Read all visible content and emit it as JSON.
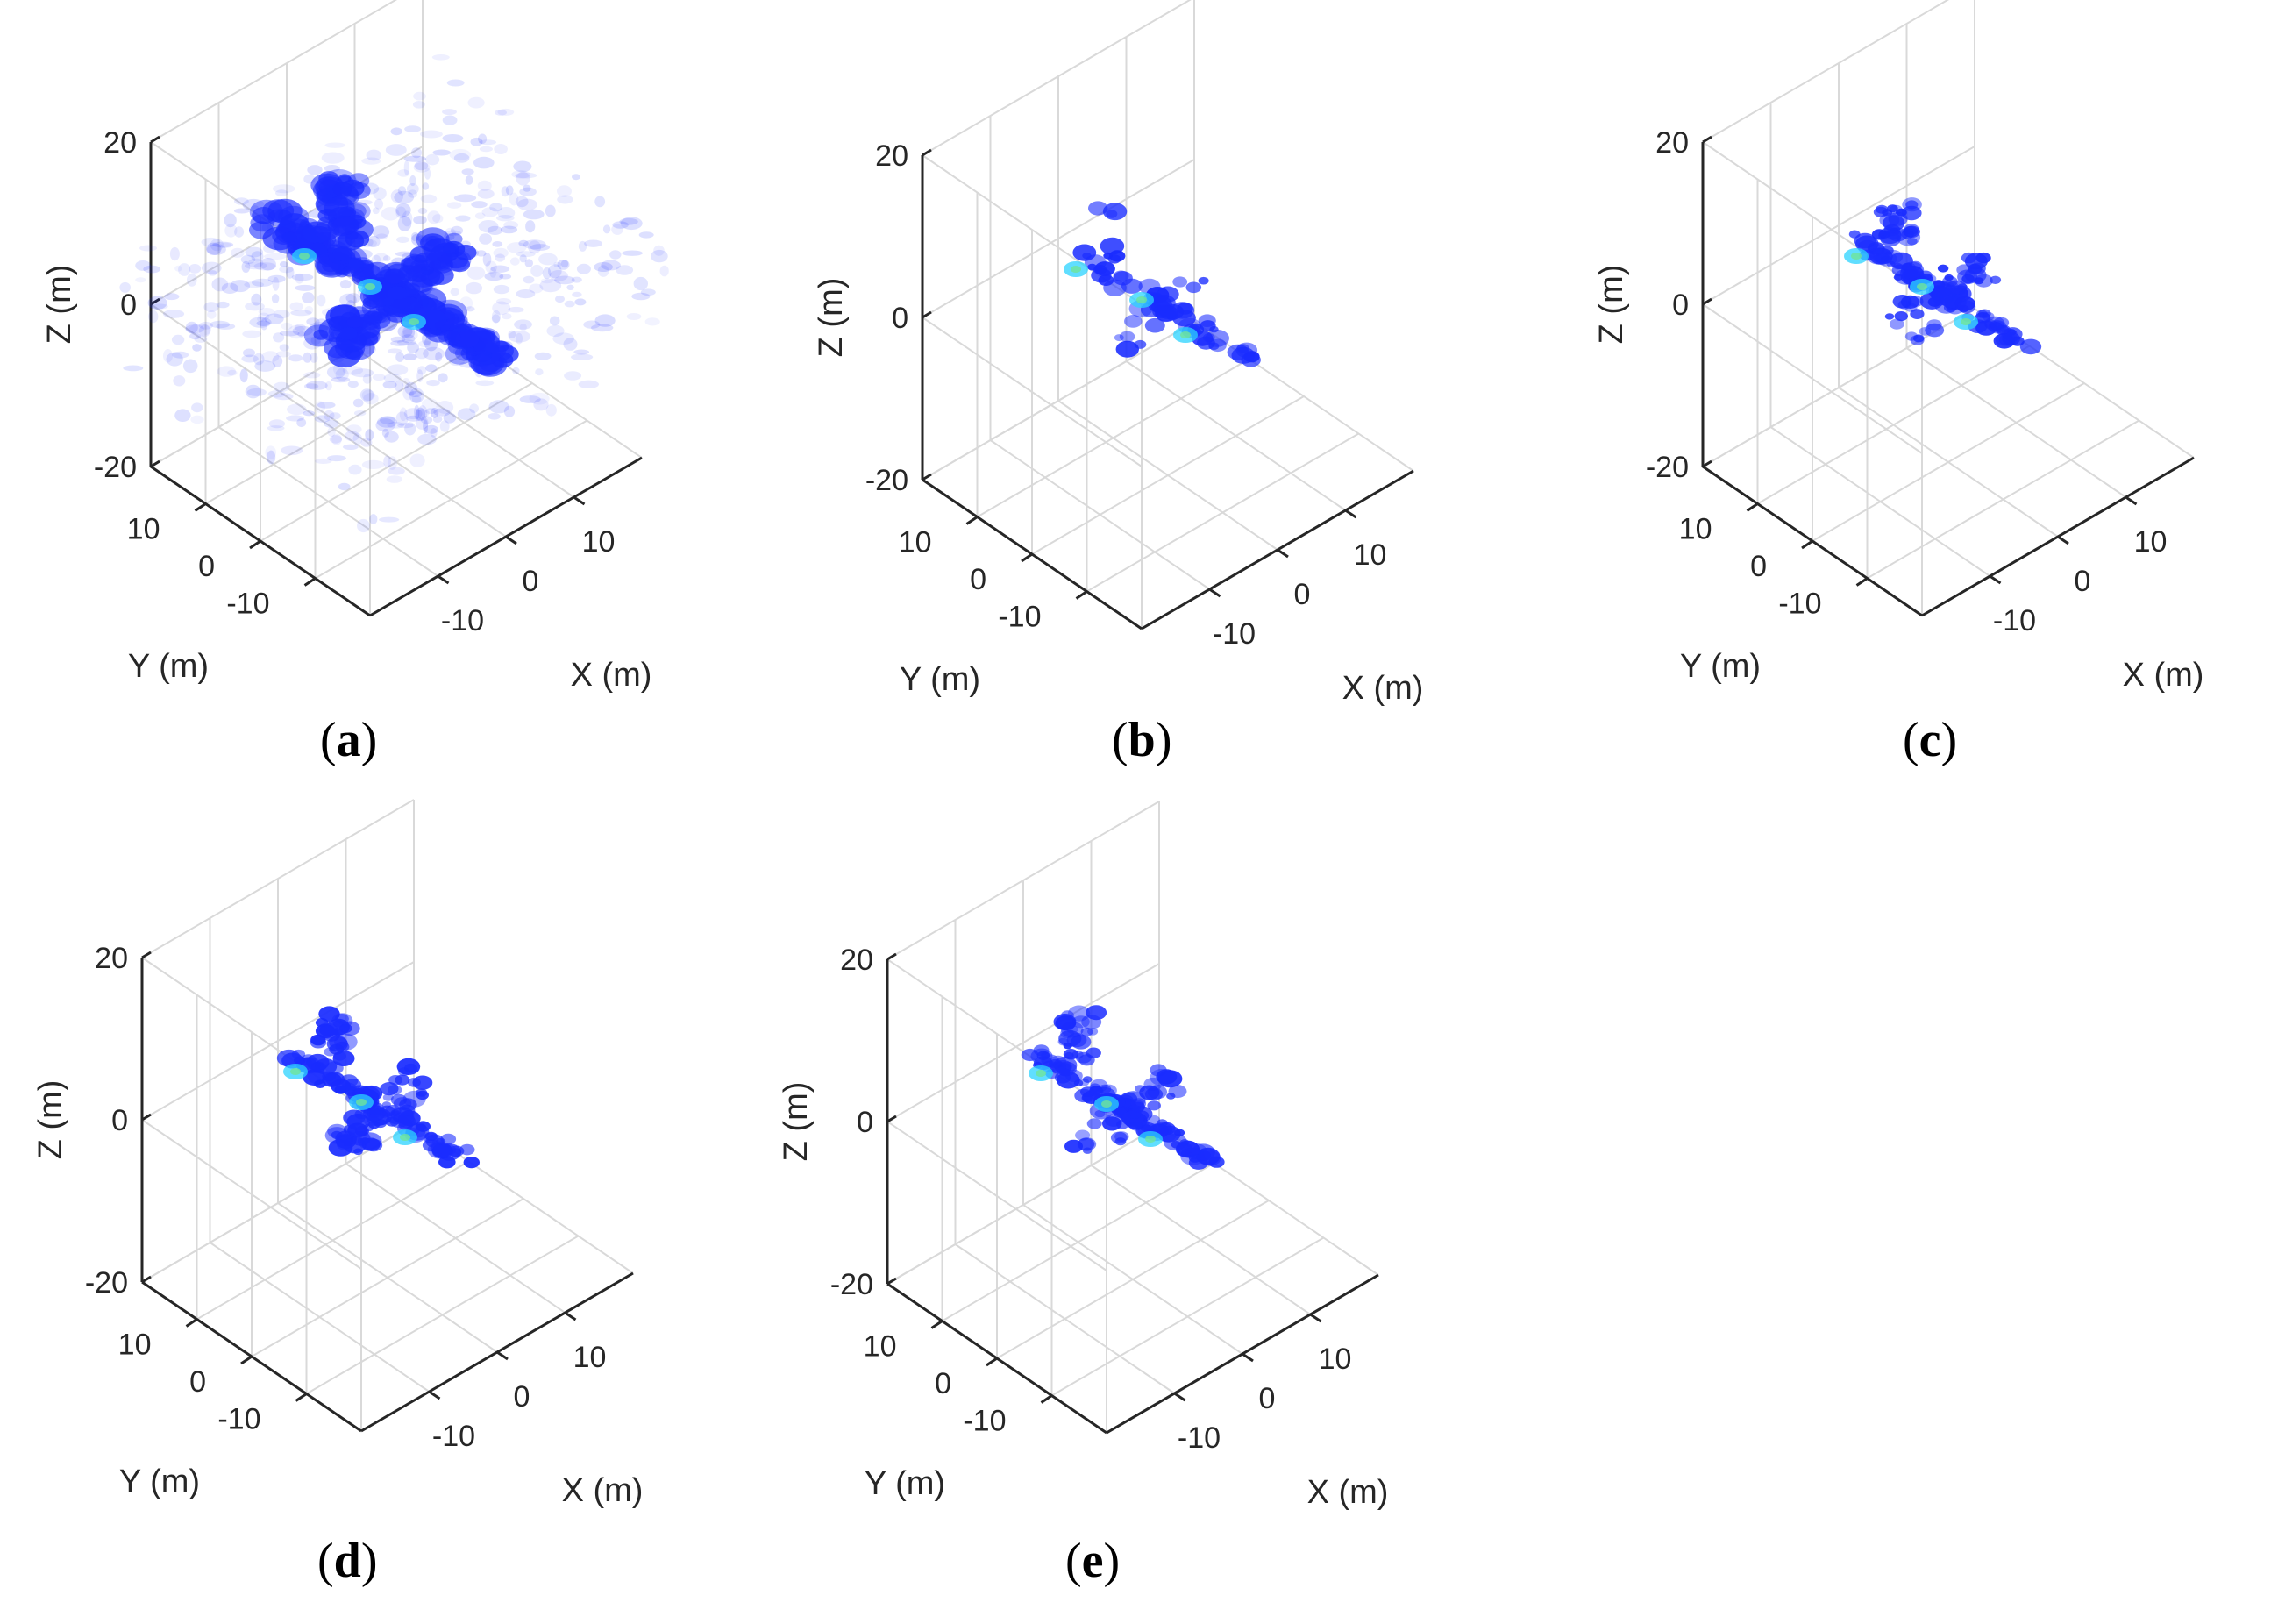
{
  "figure": {
    "panels": [
      {
        "id": "a",
        "caption_letter": "a",
        "variant": "noisy"
      },
      {
        "id": "b",
        "caption_letter": "b",
        "variant": "sparse"
      },
      {
        "id": "c",
        "caption_letter": "c",
        "variant": "clean"
      },
      {
        "id": "d",
        "caption_letter": "d",
        "variant": "clean"
      },
      {
        "id": "e",
        "caption_letter": "e",
        "variant": "clean"
      }
    ]
  },
  "chart_data": [
    {
      "type": "scatter",
      "title": "",
      "caption": "(a)",
      "xlabel": "X (m)",
      "ylabel": "Y (m)",
      "zlabel": "Z (m)",
      "xlim": [
        -20,
        20
      ],
      "ylim": [
        -20,
        20
      ],
      "zlim": [
        -20,
        20
      ],
      "xticks": [
        -10,
        0,
        10
      ],
      "yticks": [
        -10,
        0,
        10
      ],
      "zticks": [
        -20,
        0,
        20
      ],
      "xtick_labels": [
        "-10",
        "0",
        "10"
      ],
      "ytick_labels": [
        "-10",
        "0",
        "10"
      ],
      "ztick_labels": [
        "-20",
        "0",
        "20"
      ],
      "grid": true,
      "description_series": "3D reconstructed aircraft target with heavy diffuse scattering noise",
      "color": "#1a2cff"
    },
    {
      "type": "scatter",
      "title": "",
      "caption": "(b)",
      "xlabel": "X (m)",
      "ylabel": "Y (m)",
      "zlabel": "Z (m)",
      "xlim": [
        -20,
        20
      ],
      "ylim": [
        -20,
        20
      ],
      "zlim": [
        -20,
        20
      ],
      "xticks": [
        -10,
        0,
        10
      ],
      "yticks": [
        -10,
        0,
        10
      ],
      "zticks": [
        -20,
        0,
        20
      ],
      "xtick_labels": [
        "-10",
        "0",
        "10"
      ],
      "ytick_labels": [
        "-10",
        "0",
        "10"
      ],
      "ztick_labels": [
        "-20",
        "0",
        "20"
      ],
      "grid": true,
      "color": "#1a2cff"
    },
    {
      "type": "scatter",
      "title": "",
      "caption": "(c)",
      "xlabel": "X (m)",
      "ylabel": "Y (m)",
      "zlabel": "Z (m)",
      "xlim": [
        -20,
        20
      ],
      "ylim": [
        -20,
        20
      ],
      "zlim": [
        -20,
        20
      ],
      "xticks": [
        -10,
        0,
        10
      ],
      "yticks": [
        -10,
        0,
        10
      ],
      "zticks": [
        -20,
        0,
        20
      ],
      "xtick_labels": [
        "-10",
        "0",
        "10"
      ],
      "ytick_labels": [
        "-10",
        "0",
        "10"
      ],
      "ztick_labels": [
        "-20",
        "0",
        "20"
      ],
      "grid": true,
      "color": "#1a2cff"
    },
    {
      "type": "scatter",
      "title": "",
      "caption": "(d)",
      "xlabel": "X (m)",
      "ylabel": "Y (m)",
      "zlabel": "Z (m)",
      "xlim": [
        -20,
        20
      ],
      "ylim": [
        -20,
        20
      ],
      "zlim": [
        -20,
        20
      ],
      "xticks": [
        -10,
        0,
        10
      ],
      "yticks": [
        -10,
        0,
        10
      ],
      "zticks": [
        -20,
        0,
        20
      ],
      "xtick_labels": [
        "-10",
        "0",
        "10"
      ],
      "ytick_labels": [
        "-10",
        "0",
        "10"
      ],
      "ztick_labels": [
        "-20",
        "0",
        "20"
      ],
      "grid": true,
      "color": "#1a2cff"
    },
    {
      "type": "scatter",
      "title": "",
      "caption": "(e)",
      "xlabel": "X (m)",
      "ylabel": "Y (m)",
      "zlabel": "Z (m)",
      "xlim": [
        -20,
        20
      ],
      "ylim": [
        -20,
        20
      ],
      "zlim": [
        -20,
        20
      ],
      "xticks": [
        -10,
        0,
        10
      ],
      "yticks": [
        -10,
        0,
        10
      ],
      "zticks": [
        -20,
        0,
        20
      ],
      "xtick_labels": [
        "-10",
        "0",
        "10"
      ],
      "ytick_labels": [
        "-10",
        "0",
        "10"
      ],
      "ztick_labels": [
        "-20",
        "0",
        "20"
      ],
      "grid": true,
      "color": "#1a2cff"
    }
  ]
}
